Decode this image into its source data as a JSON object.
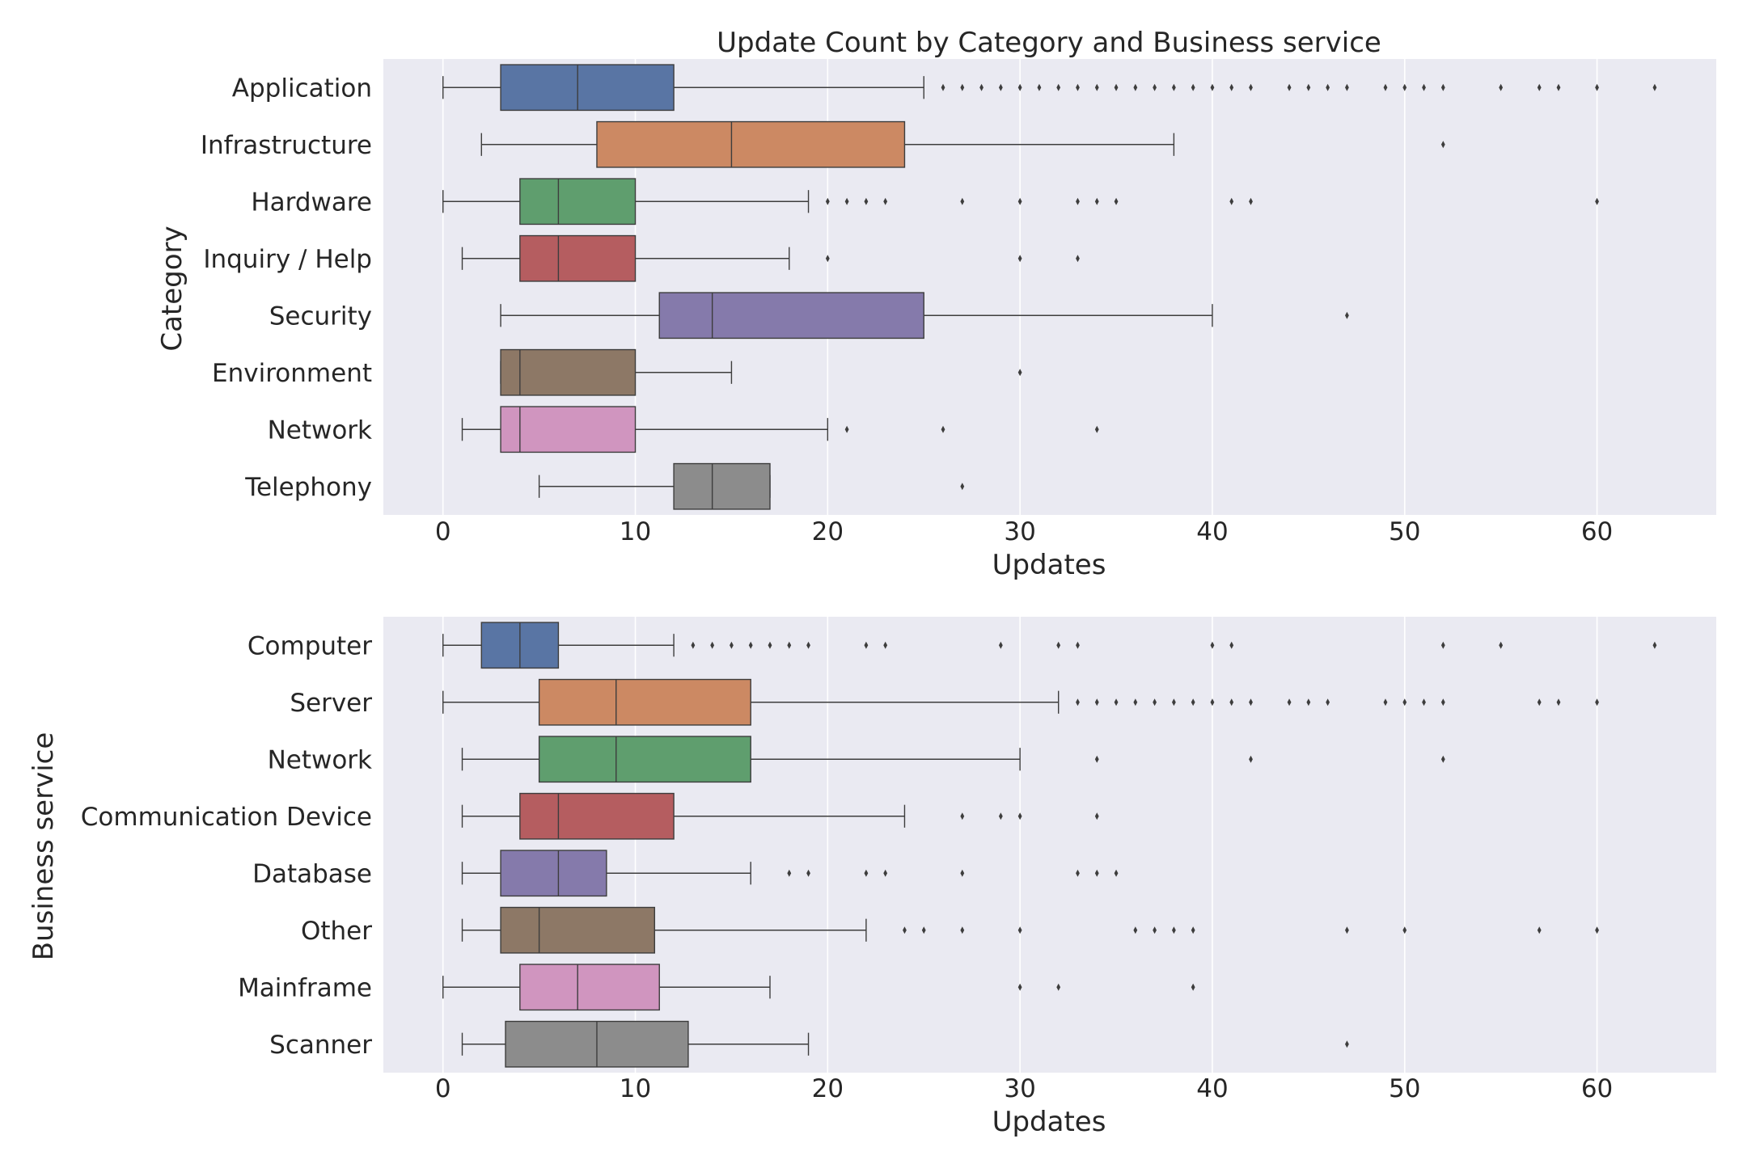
{
  "chart_data": [
    {
      "type": "box",
      "title": "Update Count by Category and Business service",
      "xlabel": "Updates",
      "ylabel": "Category",
      "xlim": [
        -3.1,
        66.2
      ],
      "xticks": [
        0,
        10,
        20,
        30,
        40,
        50,
        60
      ],
      "orientation": "horizontal",
      "grid": true,
      "series": [
        {
          "name": "Application",
          "color": "#5975a4",
          "whislo": 0,
          "q1": 3,
          "med": 7,
          "q3": 12,
          "whishi": 25,
          "fliers": [
            26,
            27,
            28,
            29,
            30,
            31,
            32,
            33,
            34,
            35,
            36,
            37,
            38,
            39,
            40,
            41,
            42,
            44,
            45,
            46,
            47,
            49,
            50,
            51,
            52,
            55,
            57,
            58,
            60,
            63
          ]
        },
        {
          "name": "Infrastructure",
          "color": "#cc8963",
          "whislo": 2,
          "q1": 8,
          "med": 15,
          "q3": 24,
          "whishi": 38,
          "fliers": [
            52
          ]
        },
        {
          "name": "Hardware",
          "color": "#5f9e6e",
          "whislo": 0,
          "q1": 4,
          "med": 6,
          "q3": 10,
          "whishi": 19,
          "fliers": [
            20,
            21,
            22,
            23,
            27,
            30,
            33,
            34,
            35,
            41,
            42,
            60
          ]
        },
        {
          "name": "Inquiry / Help",
          "color": "#b55d60",
          "whislo": 1,
          "q1": 4,
          "med": 6,
          "q3": 10,
          "whishi": 18,
          "fliers": [
            20,
            30,
            33
          ]
        },
        {
          "name": "Security",
          "color": "#857aab",
          "whislo": 3,
          "q1": 11.25,
          "med": 14,
          "q3": 25,
          "whishi": 40,
          "fliers": [
            47
          ]
        },
        {
          "name": "Environment",
          "color": "#8d7866",
          "whislo": 3,
          "q1": 3,
          "med": 4,
          "q3": 10,
          "whishi": 15,
          "fliers": [
            30
          ]
        },
        {
          "name": "Network",
          "color": "#d095bf",
          "whislo": 1,
          "q1": 3,
          "med": 4,
          "q3": 10,
          "whishi": 20,
          "fliers": [
            21,
            26,
            34
          ]
        },
        {
          "name": "Telephony",
          "color": "#8c8c8c",
          "whislo": 5,
          "q1": 12,
          "med": 14,
          "q3": 17,
          "whishi": 17,
          "fliers": [
            27
          ]
        }
      ]
    },
    {
      "type": "box",
      "title": "",
      "xlabel": "Updates",
      "ylabel": "Business service",
      "xlim": [
        -3.1,
        66.2
      ],
      "xticks": [
        0,
        10,
        20,
        30,
        40,
        50,
        60
      ],
      "orientation": "horizontal",
      "grid": true,
      "series": [
        {
          "name": "Computer",
          "color": "#5975a4",
          "whislo": 0,
          "q1": 2,
          "med": 4,
          "q3": 6,
          "whishi": 12,
          "fliers": [
            13,
            14,
            15,
            16,
            17,
            18,
            19,
            22,
            23,
            29,
            32,
            33,
            40,
            41,
            52,
            55,
            63
          ]
        },
        {
          "name": "Server",
          "color": "#cc8963",
          "whislo": 0,
          "q1": 5,
          "med": 9,
          "q3": 16,
          "whishi": 32,
          "fliers": [
            33,
            34,
            35,
            36,
            37,
            38,
            39,
            40,
            41,
            42,
            44,
            45,
            46,
            49,
            50,
            51,
            52,
            57,
            58,
            60
          ]
        },
        {
          "name": "Network",
          "color": "#5f9e6e",
          "whislo": 1,
          "q1": 5,
          "med": 9,
          "q3": 16,
          "whishi": 30,
          "fliers": [
            34,
            42,
            52
          ]
        },
        {
          "name": "Communication Device",
          "color": "#b55d60",
          "whislo": 1,
          "q1": 4,
          "med": 6,
          "q3": 12,
          "whishi": 24,
          "fliers": [
            27,
            29,
            30,
            34
          ]
        },
        {
          "name": "Database",
          "color": "#857aab",
          "whislo": 1,
          "q1": 3,
          "med": 6,
          "q3": 8.5,
          "whishi": 16,
          "fliers": [
            18,
            19,
            22,
            23,
            27,
            33,
            34,
            35
          ]
        },
        {
          "name": "Other",
          "color": "#8d7866",
          "whislo": 1,
          "q1": 3,
          "med": 5,
          "q3": 11,
          "whishi": 22,
          "fliers": [
            24,
            25,
            27,
            30,
            36,
            37,
            38,
            39,
            47,
            50,
            57,
            60
          ]
        },
        {
          "name": "Mainframe",
          "color": "#d095bf",
          "whislo": 0,
          "q1": 4,
          "med": 7,
          "q3": 11.25,
          "whishi": 17,
          "fliers": [
            30,
            32,
            39
          ]
        },
        {
          "name": "Scanner",
          "color": "#8c8c8c",
          "whislo": 1,
          "q1": 3.25,
          "med": 8,
          "q3": 12.75,
          "whishi": 19,
          "fliers": [
            47
          ]
        }
      ]
    }
  ],
  "style": {
    "plot_background": "#eaeaf2",
    "grid_color": "#ffffff",
    "line_color": "#3d3d3d"
  }
}
